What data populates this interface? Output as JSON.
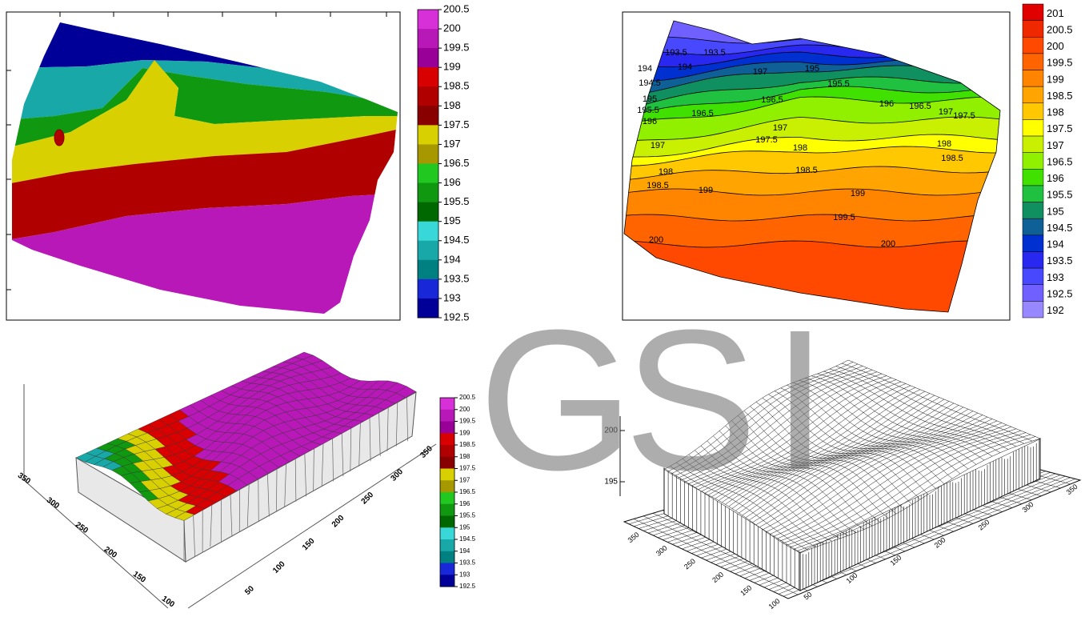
{
  "chart_data": [
    {
      "type": "contour",
      "colorbar": {
        "ticks": [
          200.5,
          200,
          199.5,
          199,
          198.5,
          198,
          197.5,
          197,
          196.5,
          196,
          195.5,
          195,
          194.5,
          194,
          193.5,
          193,
          192.5
        ],
        "colors": [
          "#d830d8",
          "#b818b8",
          "#980098",
          "#d80000",
          "#b00000",
          "#880000",
          "#d8d000",
          "#a89800",
          "#20c820",
          "#109810",
          "#006800",
          "#38d8d8",
          "#18a8a8",
          "#008080",
          "#1828d8",
          "#000098"
        ]
      }
    },
    {
      "type": "contour-lines",
      "colorbar": {
        "ticks": [
          201,
          200.5,
          200,
          199.5,
          199,
          198.5,
          198,
          197.5,
          197,
          196.5,
          196,
          195.5,
          195,
          194.5,
          194,
          193.5,
          193,
          192.5,
          192
        ],
        "colors": [
          "#e00000",
          "#f02800",
          "#ff4800",
          "#ff6400",
          "#ff8400",
          "#ffa400",
          "#ffc800",
          "#ffff00",
          "#c8f000",
          "#90f000",
          "#40e000",
          "#20c040",
          "#109060",
          "#106098",
          "#0030d0",
          "#2828f0",
          "#4848ff",
          "#7060ff",
          "#9888ff"
        ]
      },
      "contour_labels": [
        193.5,
        193.5,
        194,
        194,
        194.5,
        195,
        195,
        195.5,
        195.5,
        196,
        196,
        196.5,
        196.5,
        196.5,
        197,
        197,
        197,
        197,
        197.5,
        197.5,
        198,
        198,
        198,
        198.5,
        198.5,
        198.5,
        199,
        199,
        199.5,
        200,
        200
      ]
    },
    {
      "type": "surface",
      "colorbar": {
        "ticks": [
          200.5,
          200,
          199.5,
          199,
          198.5,
          198,
          197.5,
          197,
          196.5,
          196,
          195.5,
          195,
          194.5,
          194,
          193.5,
          193,
          192.5
        ],
        "colors": [
          "#d830d8",
          "#b818b8",
          "#980098",
          "#d80000",
          "#b00000",
          "#880000",
          "#d8d000",
          "#a89800",
          "#20c820",
          "#109810",
          "#006800",
          "#38d8d8",
          "#18a8a8",
          "#008080",
          "#1828d8",
          "#000098"
        ]
      },
      "xticks": [
        50,
        100,
        150,
        200,
        250,
        300,
        350
      ],
      "yticks": [
        100,
        150,
        200,
        250,
        300,
        350
      ]
    },
    {
      "type": "wireframe",
      "zticks": [
        200,
        195
      ],
      "xticks": [
        50,
        100,
        150,
        200,
        250,
        300,
        350
      ],
      "yticks": [
        100,
        150,
        200,
        250,
        300,
        350
      ]
    }
  ],
  "watermark": [
    "G",
    "S",
    "I"
  ]
}
